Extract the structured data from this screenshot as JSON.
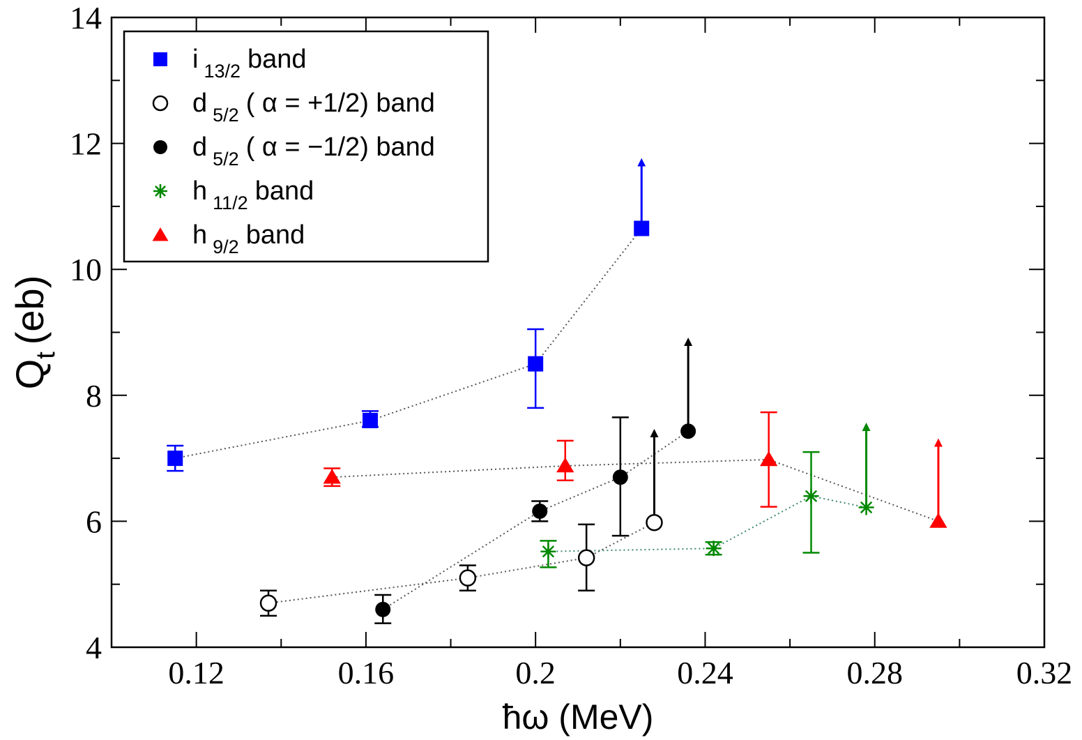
{
  "chart_data": {
    "type": "scatter",
    "xlabel": "ħω (MeV)",
    "ylabel_main": "Q",
    "ylabel_sub": "t",
    "ylabel_unit": "(eb)",
    "xlim": [
      0.1,
      0.32
    ],
    "ylim": [
      4,
      14
    ],
    "x_ticks": [
      "0.12",
      "0.16",
      "0.2",
      "0.24",
      "0.28",
      "0.32"
    ],
    "x_tick_values": [
      0.12,
      0.16,
      0.2,
      0.24,
      0.28,
      0.32
    ],
    "y_ticks": [
      "4",
      "6",
      "8",
      "10",
      "12",
      "14"
    ],
    "y_tick_values": [
      4,
      6,
      8,
      10,
      12,
      14
    ],
    "legend_position": "top-left",
    "series": [
      {
        "name": "i 13/2 band",
        "label_main": "i",
        "label_sub": "13/2",
        "label_rest": "band",
        "marker": "square",
        "color": "#0000ff",
        "line_color": "#555555",
        "points": [
          {
            "x": 0.115,
            "y": 7.0,
            "err_low": 0.2,
            "err_high": 0.2,
            "lower_limit": false
          },
          {
            "x": 0.161,
            "y": 7.6,
            "err_low": 0.1,
            "err_high": 0.15,
            "lower_limit": false
          },
          {
            "x": 0.2,
            "y": 8.5,
            "err_low": 0.7,
            "err_high": 0.55,
            "lower_limit": false
          },
          {
            "x": 0.225,
            "y": 10.65,
            "err_low": 0,
            "err_high": 0,
            "lower_limit": true,
            "limit_to": 11.7
          }
        ]
      },
      {
        "name": "d 5/2 (α=+1/2) band",
        "label_main": "d",
        "label_sub": "5/2",
        "label_rest": "( α = +1/2) band",
        "marker": "circle-open",
        "color": "#000000",
        "line_color": "#555555",
        "points": [
          {
            "x": 0.137,
            "y": 4.7,
            "err_low": 0.2,
            "err_high": 0.2,
            "lower_limit": false
          },
          {
            "x": 0.184,
            "y": 5.1,
            "err_low": 0.2,
            "err_high": 0.2,
            "lower_limit": false
          },
          {
            "x": 0.212,
            "y": 5.42,
            "err_low": 0.52,
            "err_high": 0.53,
            "lower_limit": false
          },
          {
            "x": 0.228,
            "y": 5.98,
            "err_low": 0,
            "err_high": 0,
            "lower_limit": true,
            "limit_to": 7.4
          }
        ]
      },
      {
        "name": "d 5/2 (α=−1/2) band",
        "label_main": "d",
        "label_sub": "5/2",
        "label_rest": "( α = −1/2) band",
        "marker": "circle-filled",
        "color": "#000000",
        "line_color": "#555555",
        "points": [
          {
            "x": 0.164,
            "y": 4.6,
            "err_low": 0.22,
            "err_high": 0.23,
            "lower_limit": false
          },
          {
            "x": 0.201,
            "y": 6.16,
            "err_low": 0.16,
            "err_high": 0.16,
            "lower_limit": false
          },
          {
            "x": 0.22,
            "y": 6.7,
            "err_low": 0.93,
            "err_high": 0.95,
            "lower_limit": false
          },
          {
            "x": 0.236,
            "y": 7.43,
            "err_low": 0,
            "err_high": 0,
            "lower_limit": true,
            "limit_to": 8.85
          }
        ]
      },
      {
        "name": "h 11/2 band",
        "label_main": "h",
        "label_sub": "11/2",
        "label_rest": "band",
        "marker": "star",
        "color": "#008800",
        "line_color": "#3a8a6a",
        "points": [
          {
            "x": 0.203,
            "y": 5.52,
            "err_low": 0.25,
            "err_high": 0.17,
            "lower_limit": false
          },
          {
            "x": 0.242,
            "y": 5.57,
            "err_low": 0.1,
            "err_high": 0.1,
            "lower_limit": false
          },
          {
            "x": 0.265,
            "y": 6.4,
            "err_low": 0.9,
            "err_high": 0.7,
            "lower_limit": false
          },
          {
            "x": 0.278,
            "y": 6.22,
            "err_low": 0,
            "err_high": 0,
            "lower_limit": true,
            "limit_to": 7.5
          }
        ]
      },
      {
        "name": "h 9/2 band",
        "label_main": "h",
        "label_sub": "9/2",
        "label_rest": "band",
        "marker": "triangle",
        "color": "#ff0000",
        "line_color": "#555555",
        "points": [
          {
            "x": 0.152,
            "y": 6.7,
            "err_low": 0.14,
            "err_high": 0.14,
            "lower_limit": false
          },
          {
            "x": 0.207,
            "y": 6.88,
            "err_low": 0.23,
            "err_high": 0.4,
            "lower_limit": false
          },
          {
            "x": 0.255,
            "y": 6.98,
            "err_low": 0.75,
            "err_high": 0.75,
            "lower_limit": false
          },
          {
            "x": 0.295,
            "y": 6.0,
            "err_low": 0,
            "err_high": 0,
            "lower_limit": true,
            "limit_to": 7.25
          }
        ]
      }
    ]
  }
}
